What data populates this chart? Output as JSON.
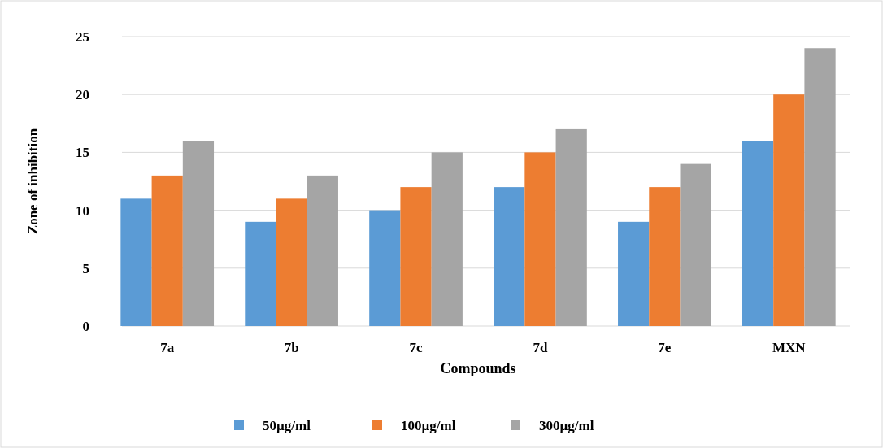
{
  "chart_data": {
    "type": "bar",
    "xlabel": "Compounds",
    "ylabel": "Zone of inhibition",
    "categories": [
      "7a",
      "7b",
      "7c",
      "7d",
      "7e",
      "MXN"
    ],
    "series": [
      {
        "name": "50µg/ml",
        "color": "#5b9bd5",
        "values": [
          11,
          9,
          10,
          12,
          9,
          16
        ]
      },
      {
        "name": "100µg/ml",
        "color": "#ed7d31",
        "values": [
          13,
          11,
          12,
          15,
          12,
          20
        ]
      },
      {
        "name": "300µg/ml",
        "color": "#a5a5a5",
        "values": [
          16,
          13,
          15,
          17,
          14,
          24
        ]
      }
    ],
    "ylim": [
      0,
      25
    ],
    "yticks": [
      0,
      5,
      10,
      15,
      20,
      25
    ],
    "grid": "y",
    "legend": "bottom"
  }
}
